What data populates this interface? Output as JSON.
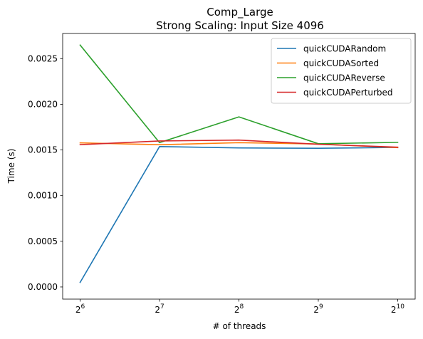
{
  "chart_data": {
    "type": "line",
    "title_line1": "Comp_Large",
    "title_line2": "Strong Scaling: Input Size 4096",
    "xlabel": "# of threads",
    "ylabel": "Time (s)",
    "x_scale": "log2",
    "x": [
      64,
      128,
      256,
      512,
      1024
    ],
    "x_tick_labels": [
      {
        "base": "2",
        "exp": "6"
      },
      {
        "base": "2",
        "exp": "7"
      },
      {
        "base": "2",
        "exp": "8"
      },
      {
        "base": "2",
        "exp": "9"
      },
      {
        "base": "2",
        "exp": "10"
      }
    ],
    "ylim": [
      -0.000133,
      0.002775
    ],
    "y_ticks": [
      0.0,
      0.0005,
      0.001,
      0.0015,
      0.002,
      0.0025
    ],
    "y_tick_labels": [
      "0.0000",
      "0.0005",
      "0.0010",
      "0.0015",
      "0.0020",
      "0.0025"
    ],
    "grid": false,
    "legend_position": "top-right",
    "series": [
      {
        "name": "quickCUDARandom",
        "color": "#1f77b4",
        "values": [
          5e-05,
          0.001537,
          0.001522,
          0.001518,
          0.001528
        ]
      },
      {
        "name": "quickCUDASorted",
        "color": "#ff7f0e",
        "values": [
          0.001578,
          0.001557,
          0.00158,
          0.001565,
          0.001525
        ]
      },
      {
        "name": "quickCUDAReverse",
        "color": "#2ca02c",
        "values": [
          0.002648,
          0.00158,
          0.001862,
          0.001568,
          0.001583
        ]
      },
      {
        "name": "quickCUDAPerturbed",
        "color": "#d62728",
        "values": [
          0.001558,
          0.001598,
          0.001608,
          0.001562,
          0.00153
        ]
      }
    ]
  }
}
